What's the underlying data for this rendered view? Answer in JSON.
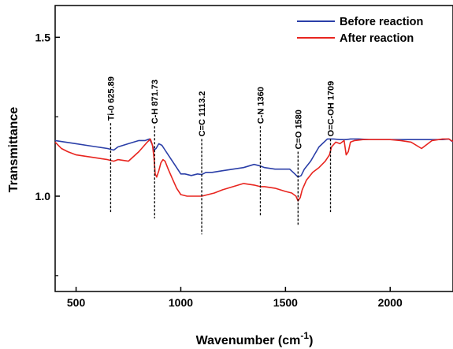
{
  "chart_data": {
    "type": "line",
    "xlabel": "Wavenumber (cm",
    "xlabel_sup": "-1",
    "xlabel_close": ")",
    "ylabel": "Transmittance",
    "xlim": [
      400,
      2300
    ],
    "ylim": [
      0.7,
      1.6
    ],
    "xticks": [
      500,
      1000,
      1500,
      2000
    ],
    "yticks": [
      1.0,
      1.5
    ],
    "yticks_minor": [
      0.75,
      1.25
    ],
    "xtick_labels": [
      "500",
      "1000",
      "1500",
      "2000"
    ],
    "ytick_labels": [
      "1.0",
      "1.5"
    ],
    "legend_position": "top-right",
    "grid": false,
    "series": [
      {
        "name": "Before reaction",
        "color": "#2b3fa8",
        "x": [
          400,
          450,
          500,
          550,
          600,
          650,
          680,
          700,
          750,
          800,
          830,
          850,
          862,
          872,
          882,
          895,
          910,
          925,
          940,
          960,
          985,
          1000,
          1020,
          1050,
          1080,
          1100,
          1120,
          1150,
          1200,
          1250,
          1300,
          1350,
          1380,
          1400,
          1450,
          1500,
          1520,
          1545,
          1560,
          1575,
          1590,
          1620,
          1660,
          1700,
          1730,
          1760,
          1790,
          1810,
          1850,
          1900,
          1950,
          2000,
          2050,
          2100,
          2150,
          2200,
          2250,
          2280,
          2300
        ],
        "y": [
          1.175,
          1.17,
          1.165,
          1.16,
          1.155,
          1.15,
          1.145,
          1.155,
          1.165,
          1.175,
          1.175,
          1.18,
          1.165,
          1.145,
          1.15,
          1.165,
          1.16,
          1.145,
          1.13,
          1.11,
          1.085,
          1.07,
          1.07,
          1.065,
          1.07,
          1.068,
          1.075,
          1.075,
          1.08,
          1.085,
          1.09,
          1.1,
          1.095,
          1.09,
          1.085,
          1.085,
          1.085,
          1.07,
          1.06,
          1.065,
          1.085,
          1.11,
          1.155,
          1.18,
          1.18,
          1.178,
          1.178,
          1.18,
          1.18,
          1.178,
          1.178,
          1.178,
          1.178,
          1.178,
          1.178,
          1.178,
          1.178,
          1.18,
          1.17
        ]
      },
      {
        "name": "After reaction",
        "color": "#e8251f",
        "x": [
          400,
          430,
          460,
          500,
          550,
          600,
          650,
          680,
          700,
          750,
          800,
          840,
          855,
          865,
          872,
          878,
          885,
          895,
          905,
          915,
          925,
          940,
          960,
          980,
          1000,
          1030,
          1060,
          1100,
          1130,
          1160,
          1200,
          1250,
          1300,
          1350,
          1380,
          1400,
          1450,
          1500,
          1530,
          1550,
          1560,
          1570,
          1580,
          1600,
          1630,
          1660,
          1690,
          1710,
          1720,
          1740,
          1760,
          1780,
          1790,
          1800,
          1810,
          1830,
          1870,
          1900,
          1950,
          2000,
          2050,
          2100,
          2150,
          2200,
          2250,
          2280,
          2300
        ],
        "y": [
          1.17,
          1.15,
          1.14,
          1.13,
          1.125,
          1.12,
          1.115,
          1.11,
          1.115,
          1.11,
          1.14,
          1.17,
          1.18,
          1.16,
          1.12,
          1.07,
          1.06,
          1.08,
          1.105,
          1.115,
          1.11,
          1.085,
          1.055,
          1.025,
          1.005,
          1.0,
          1.0,
          1.0,
          1.005,
          1.01,
          1.02,
          1.03,
          1.04,
          1.035,
          1.03,
          1.03,
          1.025,
          1.015,
          1.01,
          1.0,
          0.985,
          0.995,
          1.02,
          1.05,
          1.075,
          1.09,
          1.11,
          1.13,
          1.155,
          1.17,
          1.165,
          1.175,
          1.13,
          1.14,
          1.17,
          1.175,
          1.178,
          1.178,
          1.178,
          1.178,
          1.175,
          1.17,
          1.15,
          1.175,
          1.18,
          1.18,
          1.172
        ]
      }
    ],
    "annotations": [
      {
        "text": "Ti-0 625.89",
        "x": 665,
        "y_top": 1.23,
        "y_bottom": 0.95
      },
      {
        "text": "C-H 871.73",
        "x": 875,
        "y_top": 1.22,
        "y_bottom": 0.93
      },
      {
        "text": "C=C 1113.2",
        "x": 1100,
        "y_top": 1.18,
        "y_bottom": 0.88
      },
      {
        "text": "C-N 1360",
        "x": 1380,
        "y_top": 1.22,
        "y_bottom": 0.935
      },
      {
        "text": "C=O 1580",
        "x": 1560,
        "y_top": 1.14,
        "y_bottom": 0.91
      },
      {
        "text": "O=C-OH 1709",
        "x": 1715,
        "y_top": 1.18,
        "y_bottom": 0.95
      }
    ]
  }
}
